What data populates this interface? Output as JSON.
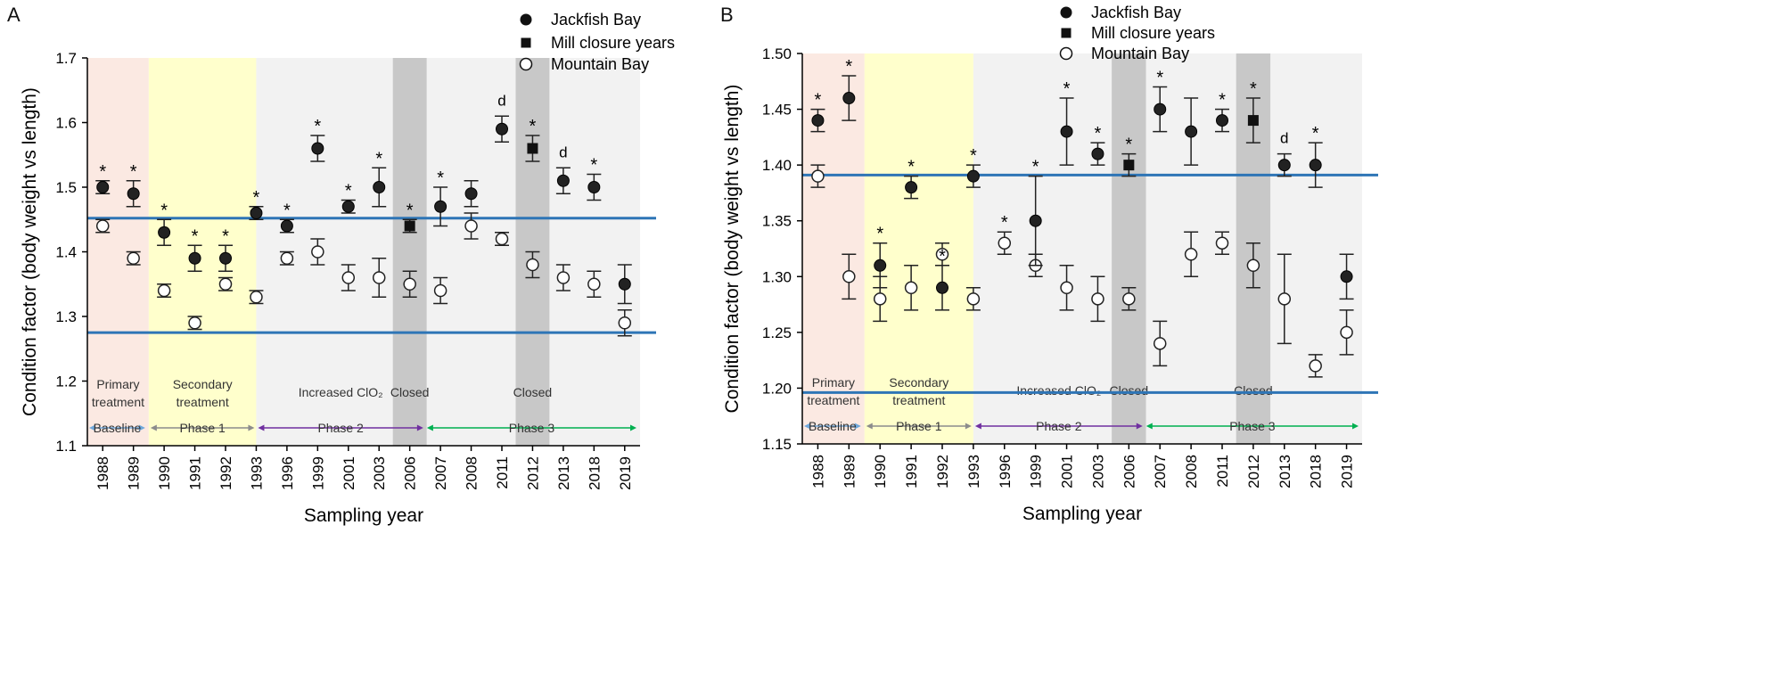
{
  "x_categories": [
    "1988",
    "1989",
    "1990",
    "1991",
    "1992",
    "1993",
    "1996",
    "1999",
    "2001",
    "2003",
    "2006",
    "2007",
    "2008",
    "2011",
    "2012",
    "2013",
    "2018",
    "2019"
  ],
  "legend": {
    "jackfish": "Jackfish Bay",
    "mill": "Mill closure years",
    "mountain": "Mountain Bay"
  },
  "regions": {
    "primary": "Primary treatment",
    "secondary": "Secondary treatment",
    "clo2": "Increased ClO₂",
    "closed": "Closed"
  },
  "phases": {
    "baseline": "Baseline",
    "p1": "Phase 1",
    "p2": "Phase 2",
    "p3": "Phase 3"
  },
  "colors": {
    "primary_bg": "#fbe9e2",
    "secondary_bg": "#ffffcc",
    "later_bg": "#f2f2f2",
    "closed_bg": "#c8c8c8",
    "ref_line": "#2e75b6",
    "baseline_arrow": "#6fa8dc",
    "p1_arrow": "#8c8c8c",
    "p2_arrow": "#7030a0",
    "p3_arrow": "#00b050"
  },
  "chart_data": [
    {
      "panel": "A",
      "type": "scatter",
      "ylabel": "Condition factor (body weight vs length)",
      "xlabel": "Sampling year",
      "ylim": [
        1.1,
        1.7
      ],
      "yticks": [
        "1.1",
        "1.2",
        "1.3",
        "1.4",
        "1.5",
        "1.6",
        "1.7"
      ],
      "ref_lines": [
        1.452,
        1.275
      ],
      "closed_years": [
        "2006",
        "2012"
      ],
      "series": [
        {
          "name": "Jackfish Bay",
          "values": [
            1.5,
            1.49,
            1.43,
            1.39,
            1.39,
            1.46,
            1.44,
            1.56,
            1.47,
            1.5,
            1.44,
            1.47,
            1.49,
            1.59,
            1.56,
            1.51,
            1.5,
            1.35
          ],
          "errors": [
            0.01,
            0.02,
            0.02,
            0.02,
            0.02,
            0.01,
            0.01,
            0.02,
            0.01,
            0.03,
            0.01,
            0.03,
            0.02,
            0.02,
            0.02,
            0.02,
            0.02,
            0.03
          ],
          "labels": [
            "*",
            "*",
            "*",
            "*",
            "*",
            "*",
            "*",
            "*",
            "*",
            "*",
            "*",
            "*",
            "",
            "d",
            "*",
            "d",
            "*",
            ""
          ]
        },
        {
          "name": "Mountain Bay",
          "values": [
            1.44,
            1.39,
            1.34,
            1.29,
            1.35,
            1.33,
            1.39,
            1.4,
            1.36,
            1.36,
            1.35,
            1.34,
            1.44,
            1.42,
            1.38,
            1.36,
            1.35,
            1.29
          ],
          "errors": [
            0.01,
            0.01,
            0.01,
            0.01,
            0.01,
            0.01,
            0.01,
            0.02,
            0.02,
            0.03,
            0.02,
            0.02,
            0.02,
            0.01,
            0.02,
            0.02,
            0.02,
            0.02
          ]
        }
      ]
    },
    {
      "panel": "B",
      "type": "scatter",
      "ylabel": "Condition factor (body weight vs length)",
      "xlabel": "Sampling year",
      "ylim": [
        1.15,
        1.5
      ],
      "yticks": [
        "1.15",
        "1.20",
        "1.25",
        "1.30",
        "1.35",
        "1.40",
        "1.45",
        "1.50"
      ],
      "ref_lines": [
        1.391,
        1.196
      ],
      "closed_years": [
        "2006",
        "2012"
      ],
      "series": [
        {
          "name": "Jackfish Bay",
          "values": [
            1.44,
            1.46,
            1.31,
            1.38,
            1.29,
            1.39,
            null,
            1.35,
            1.43,
            1.41,
            1.4,
            1.45,
            1.43,
            1.44,
            1.44,
            1.4,
            1.4,
            1.3
          ],
          "errors": [
            0.01,
            0.02,
            0.02,
            0.01,
            0.02,
            0.01,
            0,
            0.04,
            0.03,
            0.01,
            0.01,
            0.02,
            0.03,
            0.01,
            0.02,
            0.01,
            0.02,
            0.02
          ],
          "labels": [
            "*",
            "*",
            "*",
            "*",
            "*",
            "*",
            "",
            "*",
            "*",
            "*",
            "*",
            "*",
            "",
            "*",
            "*",
            "d",
            "*",
            ""
          ]
        },
        {
          "name": "Mountain Bay",
          "values": [
            1.39,
            1.3,
            1.28,
            1.29,
            1.32,
            1.28,
            1.33,
            1.31,
            1.29,
            1.28,
            1.28,
            1.24,
            1.32,
            1.33,
            1.31,
            1.28,
            1.22,
            1.25
          ],
          "errors": [
            0.01,
            0.02,
            0.02,
            0.02,
            0.01,
            0.01,
            0.01,
            0.01,
            0.02,
            0.02,
            0.01,
            0.02,
            0.02,
            0.01,
            0.02,
            0.04,
            0.01,
            0.02
          ],
          "labels": [
            "",
            "",
            "",
            "",
            "",
            "",
            "*",
            "",
            "",
            "",
            "",
            "",
            "",
            "",
            "",
            "",
            "",
            ""
          ]
        }
      ]
    }
  ]
}
